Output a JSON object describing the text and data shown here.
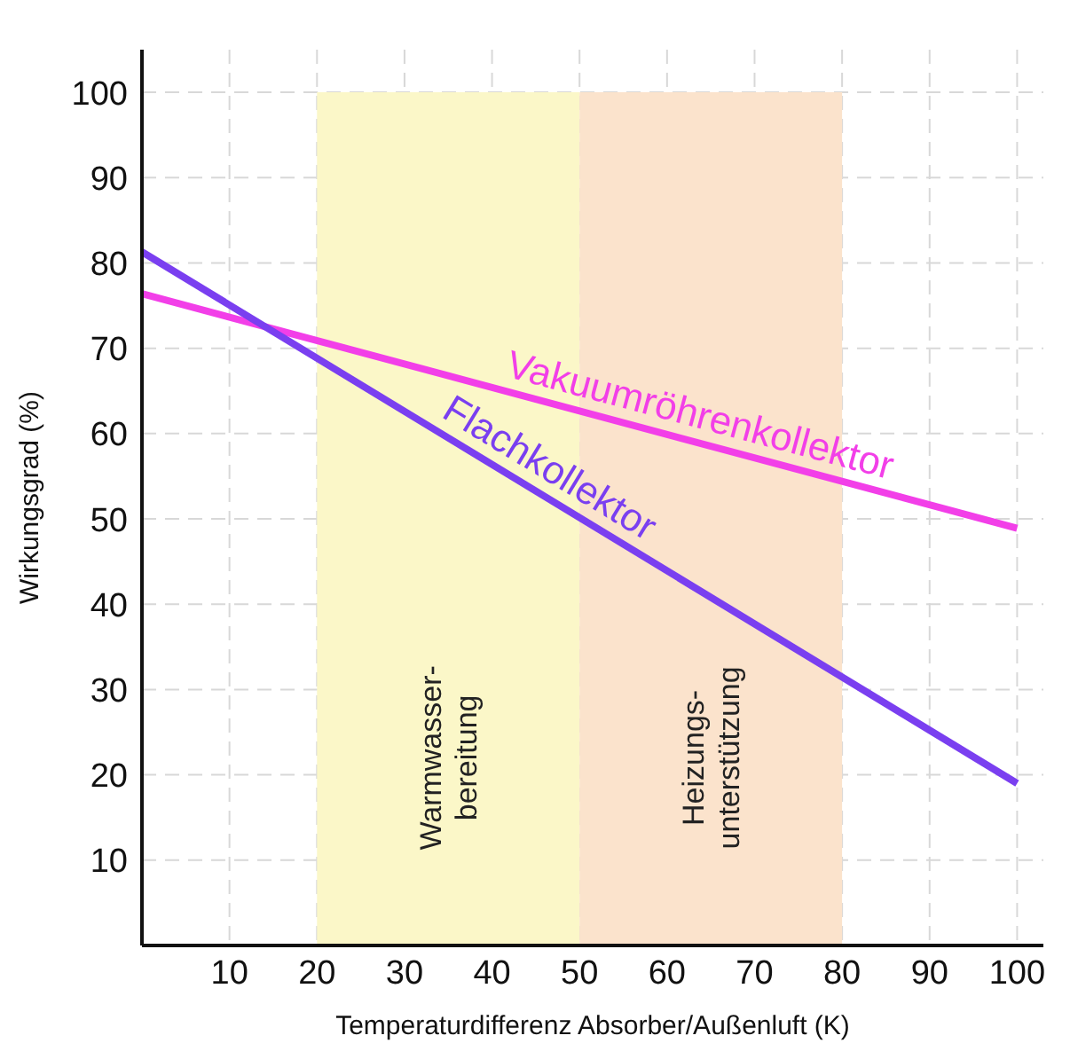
{
  "chart_data": {
    "type": "line",
    "xlabel": "Temperaturdifferenz Absorber/Außenluft (K)",
    "ylabel": "Wirkungsgrad (%)",
    "x": [
      0,
      100
    ],
    "series": [
      {
        "name": "Vakuumröhrenkollektor",
        "color": "#f23fe8",
        "values": [
          76.4,
          48.9
        ]
      },
      {
        "name": "Flachkollektor",
        "color": "#7a3ff0",
        "values": [
          81.3,
          19
        ]
      }
    ],
    "xlim": [
      0,
      103
    ],
    "xticks": [
      10,
      20,
      30,
      40,
      50,
      60,
      70,
      80,
      90,
      100
    ],
    "ylim": [
      0,
      105
    ],
    "yticks": [
      10,
      20,
      30,
      40,
      50,
      60,
      70,
      80,
      90,
      100
    ],
    "grid": true,
    "marker": "none",
    "line_style": "solid",
    "bands": [
      {
        "axis": "x",
        "from": 20,
        "to": 50,
        "label": "Warmwasser-\nbereitung",
        "color": "#fbf7c8"
      },
      {
        "axis": "x",
        "from": 50,
        "to": 80,
        "label": "Heizungs-\nunterstützung",
        "color": "#fbe3cc"
      }
    ]
  }
}
